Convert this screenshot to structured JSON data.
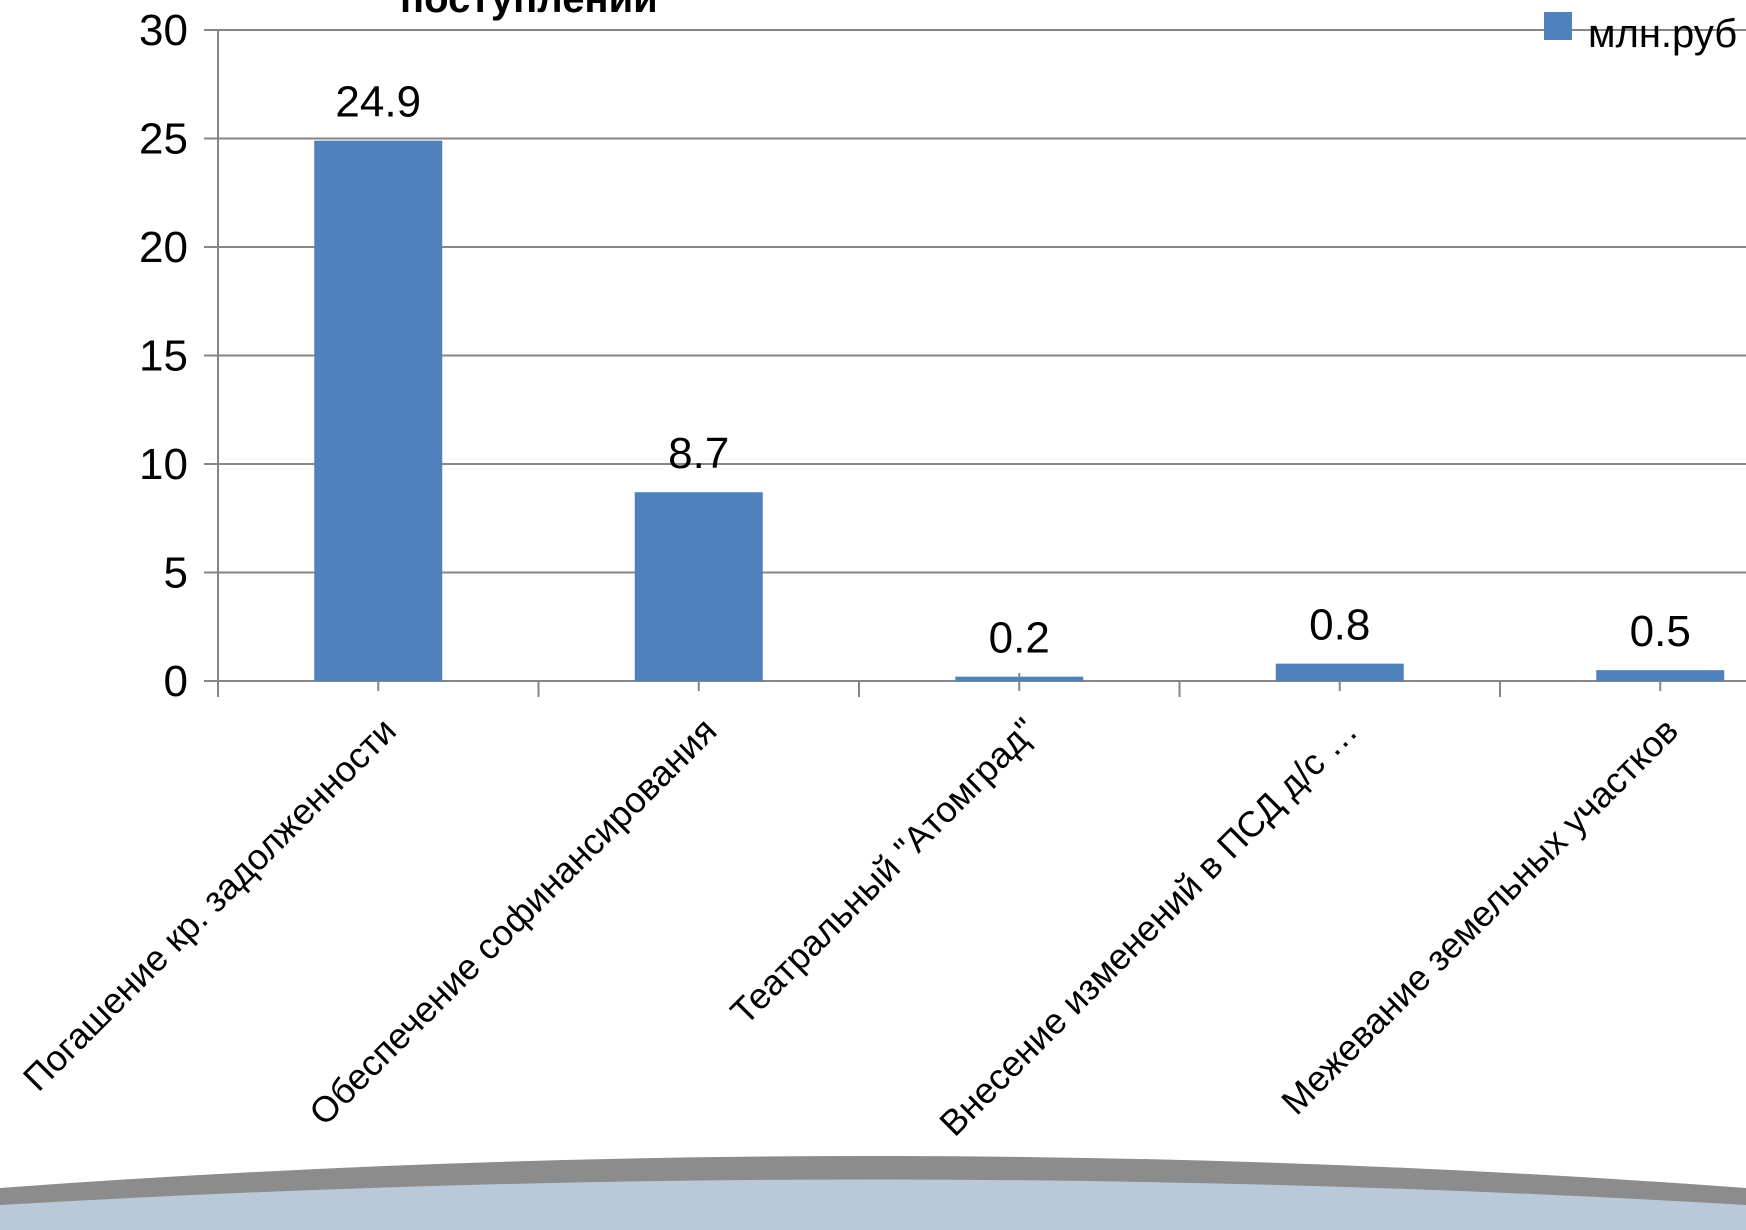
{
  "chart_data": {
    "type": "bar",
    "title": "поступлений",
    "categories": [
      "Погашение кр. задолженности",
      "Обеспечение софинансирования",
      "Театральный \"Атомград\"",
      "Внесение изменений в ПСД д/с …",
      "Межевание земельных участков"
    ],
    "series": [
      {
        "name": "млн.руб",
        "values": [
          24.9,
          8.7,
          0.2,
          0.8,
          0.5
        ]
      }
    ],
    "data_labels": [
      "24.9",
      "8.7",
      "0.2",
      "0.8",
      "0.5"
    ],
    "ylim": [
      0,
      30
    ],
    "yticks": [
      0,
      5,
      10,
      15,
      20,
      25,
      30
    ],
    "grid": true,
    "legend": "top-right",
    "colors": {
      "bar": "#4f81bd",
      "grid": "#868686",
      "band_dark": "#8c8c8c",
      "band_light": "#b9c9da"
    }
  }
}
